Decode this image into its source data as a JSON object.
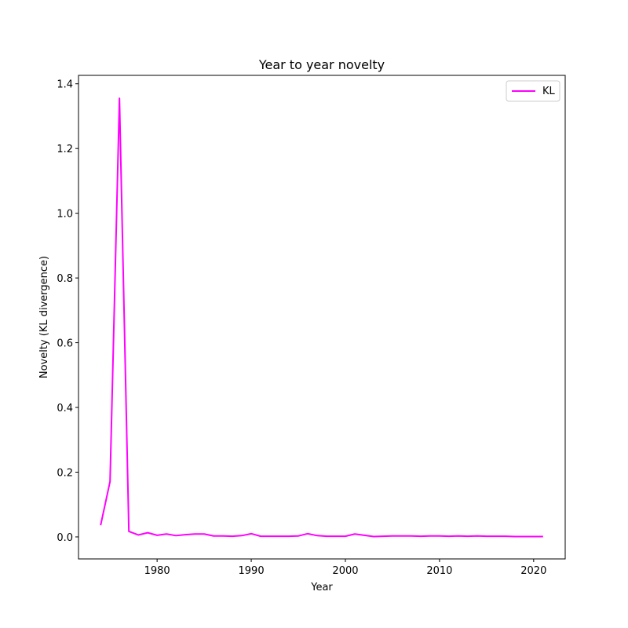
{
  "chart_data": {
    "type": "line",
    "title": "Year to year novelty",
    "xlabel": "Year",
    "ylabel": "Novelty (KL divergence)",
    "xlim": [
      1971.65,
      2023.35
    ],
    "ylim": [
      -0.068,
      1.426
    ],
    "xticks": [
      1980,
      1990,
      2000,
      2010,
      2020
    ],
    "yticks": [
      0.0,
      0.2,
      0.4,
      0.6,
      0.8,
      1.0,
      1.2,
      1.4
    ],
    "grid": false,
    "legend_position": "top-right",
    "series": [
      {
        "name": "KL",
        "color": "#ff00ff",
        "x": [
          1974,
          1975,
          1976,
          1977,
          1978,
          1979,
          1980,
          1981,
          1982,
          1983,
          1984,
          1985,
          1986,
          1987,
          1988,
          1989,
          1990,
          1991,
          1992,
          1993,
          1994,
          1995,
          1996,
          1997,
          1998,
          1999,
          2000,
          2001,
          2002,
          2003,
          2004,
          2005,
          2006,
          2007,
          2008,
          2009,
          2010,
          2011,
          2012,
          2013,
          2014,
          2015,
          2016,
          2017,
          2018,
          2019,
          2020,
          2021
        ],
        "y": [
          0.036,
          0.171,
          1.355,
          0.017,
          0.006,
          0.013,
          0.005,
          0.009,
          0.004,
          0.007,
          0.009,
          0.009,
          0.003,
          0.003,
          0.002,
          0.004,
          0.01,
          0.002,
          0.002,
          0.002,
          0.002,
          0.003,
          0.01,
          0.004,
          0.002,
          0.002,
          0.002,
          0.009,
          0.005,
          0.001,
          0.002,
          0.003,
          0.003,
          0.003,
          0.002,
          0.003,
          0.003,
          0.002,
          0.003,
          0.002,
          0.003,
          0.002,
          0.002,
          0.002,
          0.001,
          0.001,
          0.001,
          0.001
        ]
      }
    ]
  }
}
